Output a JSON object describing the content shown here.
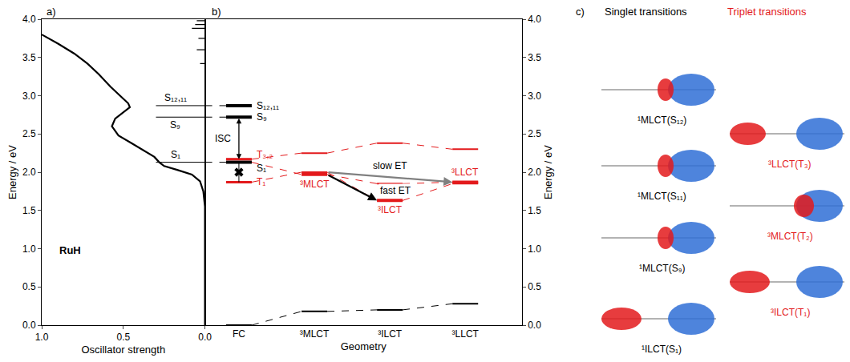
{
  "chart_data": [
    {
      "type": "line",
      "panel": "a)",
      "x_label": "Oscillator strength",
      "y_label": "Energy / eV",
      "color": "#000000",
      "x": [
        1.0,
        0.9,
        0.8,
        0.72,
        0.65,
        0.58,
        0.52,
        0.47,
        0.46,
        0.5,
        0.55,
        0.57,
        0.53,
        0.45,
        0.37,
        0.31,
        0.28,
        0.25,
        0.17,
        0.08,
        0.03,
        0.01,
        0.0,
        0.0
      ],
      "values": [
        3.8,
        3.68,
        3.55,
        3.42,
        3.28,
        3.12,
        3.0,
        2.9,
        2.85,
        2.78,
        2.7,
        2.6,
        2.48,
        2.38,
        2.28,
        2.2,
        2.13,
        2.08,
        2.03,
        1.97,
        1.88,
        1.75,
        1.55,
        0.0
      ],
      "sticks": {
        "energy": [
          3.42,
          3.6,
          3.75,
          3.88,
          3.93,
          3.98
        ],
        "strength": [
          0.03,
          0.05,
          0.04,
          0.08,
          0.06,
          0.05
        ]
      },
      "transitions": [
        {
          "label": "S₁₂,₁₁",
          "energy": 2.87
        },
        {
          "label": "S₉",
          "energy": 2.72
        },
        {
          "label": "S₁",
          "energy": 2.13
        }
      ],
      "molecule_label": "RuH",
      "xlim": [
        1.0,
        0.0
      ],
      "xticks": [
        {
          "value": 1.0,
          "label": "1.0"
        },
        {
          "value": 0.5,
          "label": "0.5"
        },
        {
          "value": 0.0,
          "label": "0.0"
        }
      ],
      "ylim": [
        0,
        4
      ],
      "yticks": [
        {
          "value": 0,
          "label": "0.0"
        },
        {
          "value": 0.5,
          "label": "0.5"
        },
        {
          "value": 1,
          "label": "1.0"
        },
        {
          "value": 1.5,
          "label": "1.5"
        },
        {
          "value": 2,
          "label": "2.0"
        },
        {
          "value": 2.5,
          "label": "2.5"
        },
        {
          "value": 3,
          "label": "3.0"
        },
        {
          "value": 3.5,
          "label": "3.5"
        },
        {
          "value": 4,
          "label": "4.0"
        }
      ],
      "grid": false
    },
    {
      "type": "levels",
      "panel": "b)",
      "x_label": "Geometry",
      "y_label": "Energy / eV",
      "categories": [
        "FC",
        "³MLCT",
        "³ILCT",
        "³LLCT"
      ],
      "ylim": [
        0,
        4
      ],
      "yticks": [
        {
          "value": 0,
          "label": "0.0"
        },
        {
          "value": 0.5,
          "label": "0.5"
        },
        {
          "value": 1,
          "label": "1.0"
        },
        {
          "value": 1.5,
          "label": "1.5"
        },
        {
          "value": 2,
          "label": "2.0"
        },
        {
          "value": 2.5,
          "label": "2.5"
        },
        {
          "value": 3,
          "label": "3.0"
        },
        {
          "value": 3.5,
          "label": "3.5"
        },
        {
          "value": 4,
          "label": "4.0"
        }
      ],
      "grid": false,
      "series": [
        {
          "color": "#000000",
          "line_style": "dashed",
          "values": [
            0.0,
            0.18,
            0.2,
            0.28
          ]
        },
        {
          "color": "#e31a1c",
          "line_style": "dashed",
          "values": [
            1.87,
            2.0,
            1.63,
            1.85
          ]
        },
        {
          "color": "#e31a1c",
          "line_style": "dashed",
          "values": [
            2.13,
            1.97,
            1.85,
            1.87
          ]
        },
        {
          "color": "#e31a1c",
          "line_style": "dashed",
          "values": [
            2.17,
            2.25,
            2.38,
            2.3
          ]
        }
      ],
      "singlets": [
        {
          "label": "S₁₂,₁₁",
          "at": "FC",
          "energy": 2.87,
          "color": "#000000"
        },
        {
          "label": "S₉",
          "at": "FC",
          "energy": 2.72,
          "color": "#000000"
        },
        {
          "label": "S₁",
          "at": "FC",
          "energy": 2.13,
          "color": "#000000"
        }
      ],
      "triplet_labels": [
        {
          "label": "T₃,₂",
          "at": "FC",
          "energy": 2.17,
          "color": "#e31a1c"
        },
        {
          "label": "T₁",
          "at": "FC",
          "energy": 1.87,
          "color": "#e31a1c"
        }
      ],
      "minima": [
        {
          "label": "³MLCT",
          "at": "³MLCT",
          "energy": 1.97,
          "color": "#e31a1c"
        },
        {
          "label": "³ILCT",
          "at": "³ILCT",
          "energy": 1.63,
          "color": "#e31a1c"
        },
        {
          "label": "³LLCT",
          "at": "³LLCT",
          "energy": 1.87,
          "color": "#e31a1c"
        }
      ],
      "arrows": [
        {
          "label": "ISC",
          "from": "FC",
          "from_energy": 2.72,
          "to": "FC",
          "to_energy": 2.17,
          "color": "#000000"
        },
        {
          "label": "fast ET",
          "from": "³MLCT",
          "from_energy": 1.97,
          "to": "³ILCT",
          "to_energy": 1.63,
          "color": "#000000"
        },
        {
          "label": "slow ET",
          "from": "³MLCT",
          "from_energy": 2.0,
          "to": "³LLCT",
          "to_energy": 1.87,
          "color": "#808080"
        }
      ],
      "blocked": {
        "at": "FC",
        "from_energy": 2.13,
        "to_energy": 1.87,
        "marker": "x"
      }
    },
    {
      "type": "orbitals",
      "panel": "c)",
      "titles": [
        {
          "label": "Singlet transitions",
          "color": "#000000"
        },
        {
          "label": "Triplet transitions",
          "color": "#e31a1c"
        }
      ],
      "columns": [
        {
          "color": "#000000",
          "labels": [
            "¹MLCT(S₁₂)",
            "¹MLCT(S₁₁)",
            "¹MLCT(S₉)",
            "¹ILCT(S₁)"
          ]
        },
        {
          "color": "#e31a1c",
          "labels": [
            "³LLCT(T₃)",
            "³MLCT(T₂)",
            "³ILCT(T₁)"
          ]
        }
      ]
    }
  ]
}
